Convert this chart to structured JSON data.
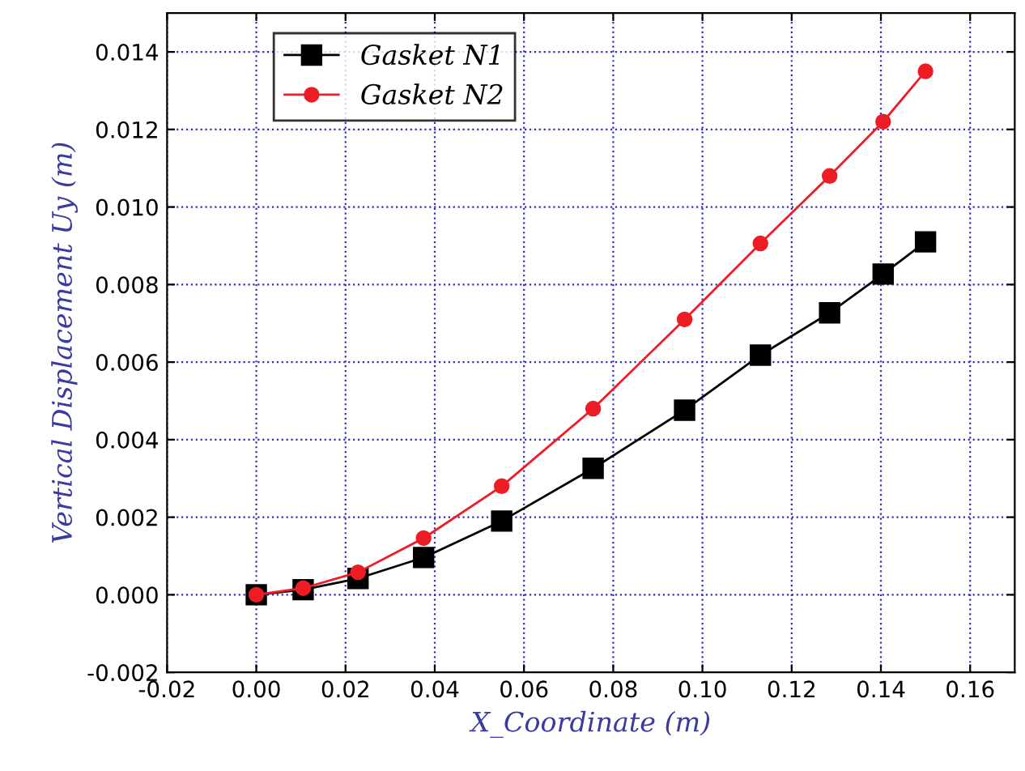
{
  "chart_data": {
    "type": "line",
    "xlabel": "X_Coordinate (m)",
    "ylabel": "Vertical Displacement Uy (m)",
    "xlim": [
      -0.02,
      0.17
    ],
    "ylim": [
      -0.002,
      0.015
    ],
    "xticks": [
      {
        "value": -0.02,
        "label": "-0.02"
      },
      {
        "value": 0,
        "label": "0.00"
      },
      {
        "value": 0.02,
        "label": "0.02"
      },
      {
        "value": 0.04,
        "label": "0.04"
      },
      {
        "value": 0.06,
        "label": "0.06"
      },
      {
        "value": 0.08,
        "label": "0.08"
      },
      {
        "value": 0.1,
        "label": "0.10"
      },
      {
        "value": 0.12,
        "label": "0.12"
      },
      {
        "value": 0.14,
        "label": "0.14"
      },
      {
        "value": 0.16,
        "label": "0.16"
      }
    ],
    "yticks": [
      {
        "value": -0.002,
        "label": "-0.002"
      },
      {
        "value": 0,
        "label": "0.000"
      },
      {
        "value": 0.002,
        "label": "0.002"
      },
      {
        "value": 0.004,
        "label": "0.004"
      },
      {
        "value": 0.006,
        "label": "0.006"
      },
      {
        "value": 0.008,
        "label": "0.008"
      },
      {
        "value": 0.01,
        "label": "0.010"
      },
      {
        "value": 0.012,
        "label": "0.012"
      },
      {
        "value": 0.014,
        "label": "0.014"
      }
    ],
    "grid": true,
    "legend": "top left",
    "line_style": "solid",
    "x": [
      0,
      0.0105,
      0.0228,
      0.0375,
      0.055,
      0.0755,
      0.096,
      0.113,
      0.1285,
      0.1405,
      0.15
    ],
    "series": [
      {
        "name": "Gasket N1",
        "color": "#000000",
        "marker": "square",
        "values": [
          0,
          0.00013,
          0.00042,
          0.00096,
          0.0019,
          0.00326,
          0.00476,
          0.00618,
          0.00727,
          0.00827,
          0.0091
        ]
      },
      {
        "name": "Gasket N2",
        "color": "#ee1c24",
        "marker": "circle",
        "values": [
          0,
          0.00017,
          0.00058,
          0.00146,
          0.0028,
          0.0048,
          0.0071,
          0.00906,
          0.0108,
          0.0122,
          0.0135
        ]
      }
    ]
  }
}
